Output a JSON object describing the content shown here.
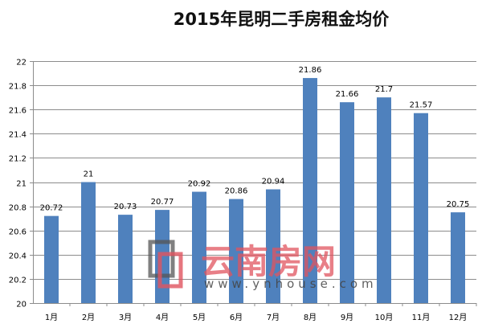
{
  "chart_data": {
    "type": "bar",
    "title": "2015年昆明二手房租金均价",
    "xlabel": "",
    "ylabel": "",
    "categories": [
      "1月",
      "2月",
      "3月",
      "4月",
      "5月",
      "6月",
      "7月",
      "8月",
      "9月",
      "10月",
      "11月",
      "12月"
    ],
    "values": [
      20.72,
      21,
      20.73,
      20.77,
      20.92,
      20.86,
      20.94,
      21.86,
      21.66,
      21.7,
      21.57,
      20.75
    ],
    "data_labels": [
      "20.72",
      "21",
      "20.73",
      "20.77",
      "20.92",
      "20.86",
      "20.94",
      "21.86",
      "21.66",
      "21.7",
      "21.57",
      "20.75"
    ],
    "ylim": [
      20,
      22
    ],
    "yticks": [
      "20",
      "20.2",
      "20.4",
      "20.6",
      "20.8",
      "21",
      "21.2",
      "21.4",
      "21.6",
      "21.8",
      "22"
    ],
    "grid": true,
    "legend": null,
    "bar_color": "#4f81bd"
  },
  "watermark": {
    "brand": "云南房网",
    "url": "www.ynhouse.com"
  }
}
